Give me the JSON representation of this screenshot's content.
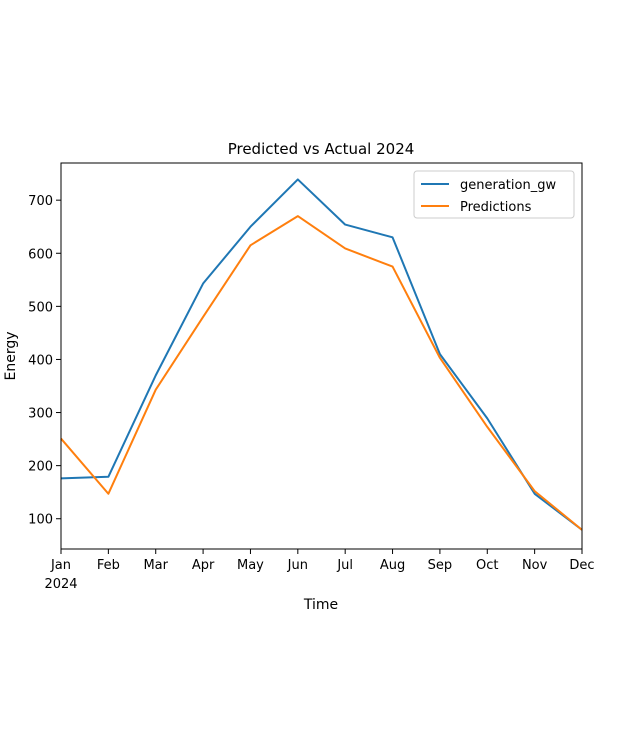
{
  "chart_data": {
    "type": "line",
    "title": "Predicted vs Actual 2024",
    "xlabel": "Time",
    "ylabel": "Energy",
    "categories": [
      "Jan",
      "Feb",
      "Mar",
      "Apr",
      "May",
      "Jun",
      "Jul",
      "Aug",
      "Sep",
      "Oct",
      "Nov",
      "Dec"
    ],
    "year_label": "2024",
    "ylim": [
      43,
      770
    ],
    "yticks": [
      100,
      200,
      300,
      400,
      500,
      600,
      700
    ],
    "grid": false,
    "legend_position": "top-right",
    "series": [
      {
        "name": "generation_gw",
        "color": "#1f77b4",
        "values": [
          176,
          179,
          370,
          543,
          650,
          739,
          654,
          630,
          410,
          289,
          147,
          79
        ]
      },
      {
        "name": "Predictions",
        "color": "#ff7f0e",
        "values": [
          251,
          147,
          343,
          480,
          615,
          670,
          609,
          575,
          403,
          273,
          152,
          79
        ]
      }
    ]
  }
}
